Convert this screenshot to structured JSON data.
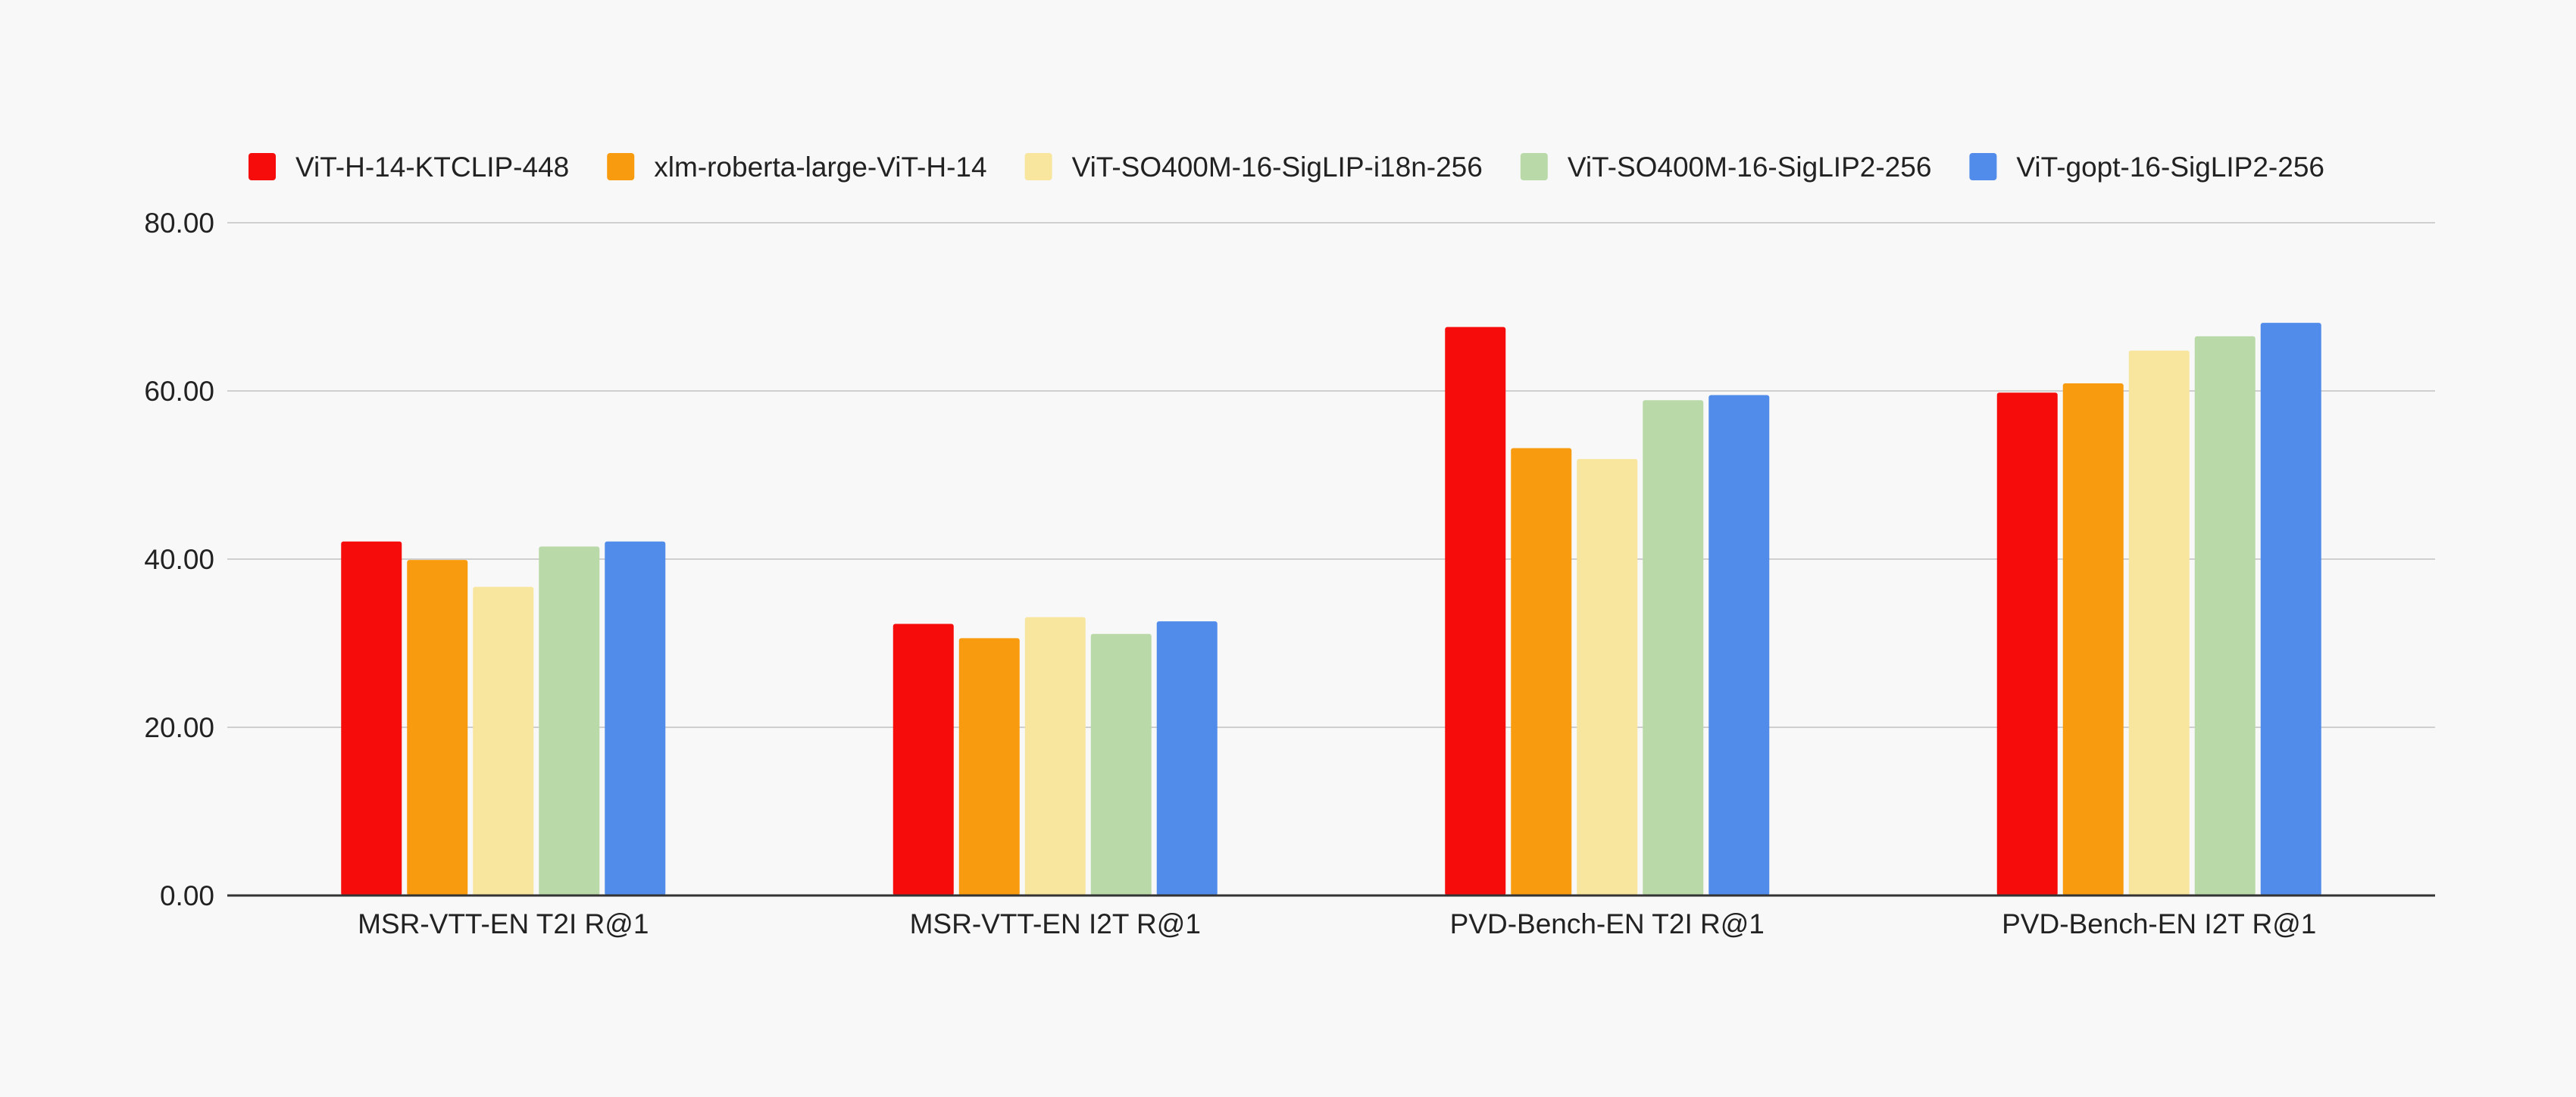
{
  "chart_data": {
    "type": "bar",
    "title": "",
    "xlabel": "",
    "ylabel": "",
    "ylim": [
      0,
      80
    ],
    "yticks": [
      "0.00",
      "20.00",
      "40.00",
      "60.00",
      "80.00"
    ],
    "grid": true,
    "legend_position": "top-left",
    "categories": [
      "MSR-VTT-EN T2I R@1",
      "MSR-VTT-EN I2T R@1",
      "PVD-Bench-EN T2I R@1",
      "PVD-Bench-EN I2T R@1"
    ],
    "series": [
      {
        "name": "ViT-H-14-KTCLIP-448",
        "color": "#f70c0c",
        "values": [
          42.1,
          32.3,
          67.6,
          59.8
        ]
      },
      {
        "name": "xlm-roberta-large-ViT-H-14",
        "color": "#f99b0e",
        "values": [
          39.9,
          30.6,
          53.2,
          60.9
        ]
      },
      {
        "name": "ViT-SO400M-16-SigLIP-i18n-256",
        "color": "#f8e59e",
        "values": [
          36.7,
          33.1,
          51.9,
          64.8
        ]
      },
      {
        "name": "ViT-SO400M-16-SigLIP2-256",
        "color": "#b9daa8",
        "values": [
          41.5,
          31.1,
          58.9,
          66.5
        ]
      },
      {
        "name": "ViT-gopt-16-SigLIP2-256",
        "color": "#518cea",
        "values": [
          42.1,
          32.6,
          59.5,
          68.1
        ]
      }
    ]
  }
}
